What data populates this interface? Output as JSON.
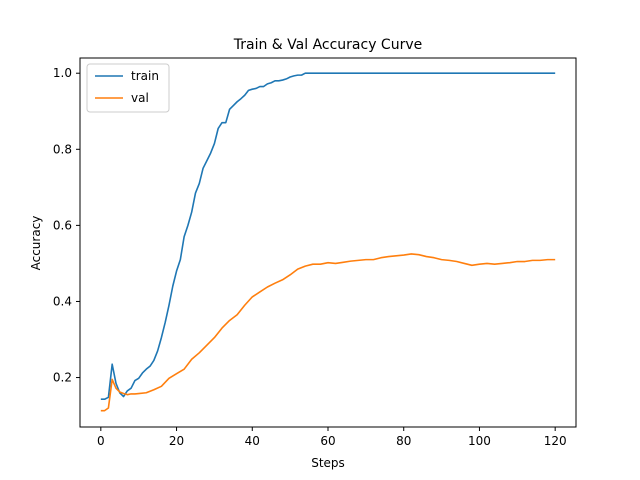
{
  "chart_data": {
    "type": "line",
    "title": "Train & Val Accuracy Curve",
    "xlabel": "Steps",
    "ylabel": "Accuracy",
    "xlim": [
      -5.5,
      125.5
    ],
    "ylim": [
      0.07,
      1.04
    ],
    "xticks": [
      0,
      20,
      40,
      60,
      80,
      100,
      120
    ],
    "xtick_labels": [
      "0",
      "20",
      "40",
      "60",
      "80",
      "100",
      "120"
    ],
    "yticks": [
      0.2,
      0.4,
      0.6,
      0.8,
      1.0
    ],
    "ytick_labels": [
      "0.2",
      "0.4",
      "0.6",
      "0.8",
      "1.0"
    ],
    "grid": false,
    "legend_position": "top-left",
    "series": [
      {
        "name": "train",
        "color": "#1f77b4",
        "x": [
          0,
          1,
          2,
          3,
          4,
          5,
          6,
          7,
          8,
          9,
          10,
          11,
          12,
          13,
          14,
          15,
          16,
          17,
          18,
          19,
          20,
          21,
          22,
          23,
          24,
          25,
          26,
          27,
          28,
          29,
          30,
          31,
          32,
          33,
          34,
          35,
          36,
          37,
          38,
          39,
          40,
          41,
          42,
          43,
          44,
          45,
          46,
          47,
          48,
          49,
          50,
          51,
          52,
          53,
          54,
          55,
          60,
          70,
          80,
          90,
          100,
          110,
          120
        ],
        "y": [
          0.143,
          0.143,
          0.148,
          0.235,
          0.185,
          0.16,
          0.15,
          0.165,
          0.172,
          0.192,
          0.198,
          0.212,
          0.222,
          0.23,
          0.245,
          0.27,
          0.305,
          0.345,
          0.39,
          0.44,
          0.48,
          0.51,
          0.57,
          0.6,
          0.635,
          0.685,
          0.71,
          0.75,
          0.77,
          0.79,
          0.815,
          0.855,
          0.87,
          0.87,
          0.905,
          0.915,
          0.925,
          0.933,
          0.942,
          0.955,
          0.958,
          0.96,
          0.965,
          0.965,
          0.972,
          0.975,
          0.98,
          0.98,
          0.982,
          0.985,
          0.99,
          0.993,
          0.995,
          0.995,
          1.0,
          1.0,
          1.0,
          1.0,
          1.0,
          1.0,
          1.0,
          1.0,
          1.0
        ]
      },
      {
        "name": "val",
        "color": "#ff7f0e",
        "x": [
          0,
          1,
          2,
          3,
          4,
          5,
          6,
          7,
          8,
          9,
          10,
          12,
          14,
          16,
          18,
          20,
          22,
          24,
          26,
          28,
          30,
          32,
          34,
          36,
          38,
          40,
          42,
          44,
          46,
          48,
          50,
          52,
          54,
          56,
          58,
          60,
          62,
          64,
          66,
          68,
          70,
          72,
          74,
          76,
          78,
          80,
          82,
          84,
          86,
          88,
          90,
          92,
          94,
          96,
          98,
          100,
          102,
          104,
          106,
          108,
          110,
          112,
          114,
          116,
          118,
          120
        ],
        "y": [
          0.113,
          0.113,
          0.12,
          0.195,
          0.172,
          0.162,
          0.158,
          0.155,
          0.157,
          0.157,
          0.158,
          0.16,
          0.168,
          0.177,
          0.198,
          0.21,
          0.222,
          0.248,
          0.265,
          0.285,
          0.305,
          0.33,
          0.35,
          0.365,
          0.39,
          0.412,
          0.425,
          0.438,
          0.448,
          0.457,
          0.47,
          0.485,
          0.493,
          0.498,
          0.498,
          0.502,
          0.5,
          0.503,
          0.506,
          0.508,
          0.51,
          0.51,
          0.515,
          0.518,
          0.52,
          0.522,
          0.525,
          0.523,
          0.518,
          0.515,
          0.51,
          0.508,
          0.505,
          0.5,
          0.495,
          0.498,
          0.5,
          0.498,
          0.5,
          0.502,
          0.505,
          0.505,
          0.508,
          0.508,
          0.51,
          0.51
        ]
      }
    ]
  }
}
